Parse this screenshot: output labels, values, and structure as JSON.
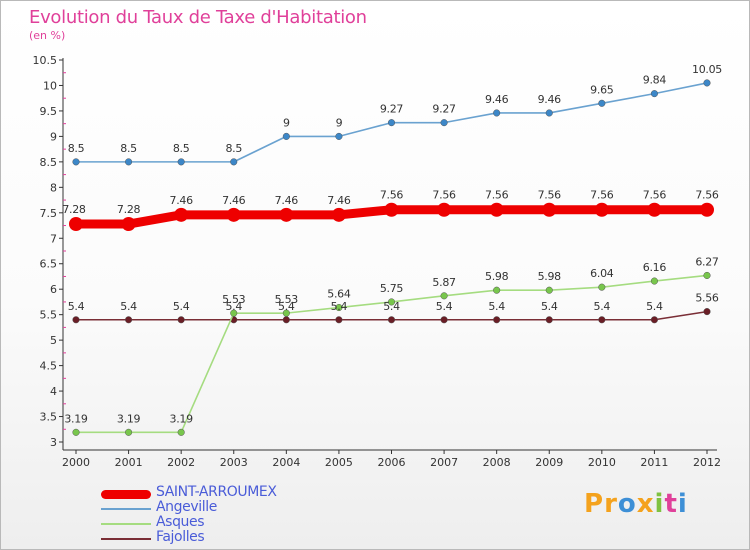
{
  "title": "Evolution du Taux de Taxe d'Habitation",
  "subtitle": "(en %)",
  "logo": {
    "text": "Proxiti",
    "letters": [
      "P",
      "r",
      "o",
      "x",
      "i",
      "t",
      "i"
    ],
    "colors": [
      "#f4a21d",
      "#f4a21d",
      "#3d8fd6",
      "#f4a21d",
      "#7fc241",
      "#e0409a",
      "#3d8fd6"
    ]
  },
  "chart_data": {
    "type": "line",
    "title": "Evolution du Taux de Taxe d'Habitation",
    "subtitle": "(en %)",
    "x": [
      2000,
      2001,
      2002,
      2003,
      2004,
      2005,
      2006,
      2007,
      2008,
      2009,
      2010,
      2011,
      2012
    ],
    "x_tick_labels": [
      "2000",
      "2001",
      "2002",
      "2003",
      "2004",
      "2005",
      "2006",
      "2007",
      "2008",
      "2009",
      "2010",
      "2011",
      "2012"
    ],
    "ylim": [
      3,
      10.5
    ],
    "y_ticks": [
      3,
      3.5,
      4,
      4.5,
      5,
      5.5,
      6,
      6.5,
      7,
      7.5,
      8,
      8.5,
      9,
      9.5,
      10,
      10.5
    ],
    "y_tick_labels": [
      "3",
      "3.5",
      "4",
      "4.5",
      "5",
      "5.5",
      "6",
      "6.5",
      "7",
      "7.5",
      "8",
      "8.5",
      "9",
      "9.5",
      "10",
      "10.5"
    ],
    "grid": false,
    "legend_position": "bottom-left",
    "series": [
      {
        "name": "SAINT-ARROUMEX",
        "color": "#ee0000",
        "legend_text_color": "#4a5cd8",
        "emphasis": "thick",
        "values": [
          7.28,
          7.28,
          7.46,
          7.46,
          7.46,
          7.46,
          7.56,
          7.56,
          7.56,
          7.56,
          7.56,
          7.56,
          7.56
        ],
        "labels": [
          "7.28",
          "7.28",
          "7.46",
          "7.46",
          "7.46",
          "7.46",
          "7.56",
          "7.56",
          "7.56",
          "7.56",
          "7.56",
          "7.56",
          "7.56"
        ]
      },
      {
        "name": "Angeville",
        "color": "#6aa2d0",
        "marker_color": "#3c87c8",
        "legend_text_color": "#4a5cd8",
        "emphasis": "normal",
        "values": [
          8.5,
          8.5,
          8.5,
          8.5,
          9,
          9,
          9.27,
          9.27,
          9.46,
          9.46,
          9.65,
          9.84,
          10.05
        ],
        "labels": [
          "8.5",
          "8.5",
          "8.5",
          "8.5",
          "9",
          "9",
          "9.27",
          "9.27",
          "9.46",
          "9.46",
          "9.65",
          "9.84",
          "10.05"
        ]
      },
      {
        "name": "Asques",
        "color": "#a5dc80",
        "marker_color": "#78c64c",
        "legend_text_color": "#4a5cd8",
        "emphasis": "normal",
        "values": [
          3.19,
          3.19,
          3.19,
          5.53,
          5.53,
          5.64,
          5.75,
          5.87,
          5.98,
          5.98,
          6.04,
          6.16,
          6.27
        ],
        "labels": [
          "3.19",
          "3.19",
          "3.19",
          "5.53",
          "5.53",
          "5.64",
          "5.75",
          "5.87",
          "5.98",
          "5.98",
          "6.04",
          "6.16",
          "6.27"
        ]
      },
      {
        "name": "Fajolles",
        "color": "#7a2e36",
        "marker_color": "#6a1e26",
        "legend_text_color": "#4a5cd8",
        "emphasis": "normal",
        "values": [
          5.4,
          5.4,
          5.4,
          5.4,
          5.4,
          5.4,
          5.4,
          5.4,
          5.4,
          5.4,
          5.4,
          5.4,
          5.56
        ],
        "labels": [
          "5.4",
          "5.4",
          "5.4",
          "5.4",
          "5.4",
          "5.4",
          "5.4",
          "5.4",
          "5.4",
          "5.4",
          "5.4",
          "5.4",
          "5.56"
        ]
      }
    ]
  }
}
